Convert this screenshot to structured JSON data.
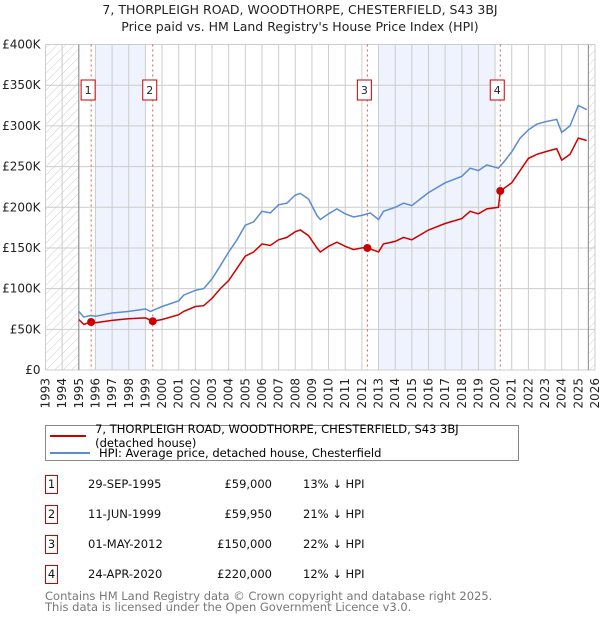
{
  "title": "7, THORPLEIGH ROAD, WOODTHORPE, CHESTERFIELD, S43 3BJ",
  "subtitle": "Price paid vs. HM Land Registry's House Price Index (HPI)",
  "colors": {
    "property": "#cc0000",
    "hpi": "#5b8bd0",
    "shade": "#eef3fd",
    "grid": "#cccccc"
  },
  "chart_data": {
    "type": "line",
    "xlim": [
      1993,
      2026
    ],
    "ylim": [
      0,
      400000
    ],
    "x_ticks": [
      "1993",
      "1994",
      "1995",
      "1996",
      "1997",
      "1998",
      "1999",
      "2000",
      "2001",
      "2002",
      "2003",
      "2004",
      "2005",
      "2006",
      "2007",
      "2008",
      "2009",
      "2010",
      "2011",
      "2012",
      "2013",
      "2014",
      "2015",
      "2016",
      "2017",
      "2018",
      "2019",
      "2020",
      "2021",
      "2022",
      "2023",
      "2024",
      "2025",
      "2026"
    ],
    "y_ticks": [
      {
        "v": 0,
        "label": "£0"
      },
      {
        "v": 50000,
        "label": "£50K"
      },
      {
        "v": 100000,
        "label": "£100K"
      },
      {
        "v": 150000,
        "label": "£150K"
      },
      {
        "v": 200000,
        "label": "£200K"
      },
      {
        "v": 250000,
        "label": "£250K"
      },
      {
        "v": 300000,
        "label": "£300K"
      },
      {
        "v": 350000,
        "label": "£350K"
      },
      {
        "v": 400000,
        "label": "£400K"
      }
    ],
    "grid": true,
    "hatched_ranges": [
      [
        1993,
        1995
      ],
      [
        2025.6,
        2026
      ]
    ],
    "shaded_ranges": [
      [
        1996,
        1999
      ],
      [
        2013,
        2020
      ]
    ],
    "series": [
      {
        "name": "7, THORPLEIGH ROAD, WOODTHORPE, CHESTERFIELD, S43 3BJ (detached house)",
        "x": [
          1995,
          1995.3,
          1995.75,
          1996,
          1997,
          1998,
          1999,
          1999.45,
          2000,
          2001,
          2001.3,
          2002,
          2002.5,
          2003,
          2003.5,
          2004,
          2004.5,
          2005,
          2005.5,
          2006,
          2006.5,
          2007,
          2007.5,
          2008,
          2008.3,
          2008.8,
          2009.3,
          2009.5,
          2010,
          2010.5,
          2011,
          2011.5,
          2012,
          2012.33,
          2013,
          2013.3,
          2014,
          2014.5,
          2015,
          2016,
          2017,
          2018,
          2018.5,
          2019,
          2019.5,
          2020.2,
          2020.31,
          2021,
          2021.5,
          2022,
          2022.5,
          2023,
          2023.7,
          2024,
          2024.5,
          2025,
          2025.5
        ],
        "values": [
          62000,
          56000,
          59000,
          58000,
          61000,
          63000,
          64000,
          59950,
          62000,
          68000,
          72000,
          78000,
          79000,
          88000,
          100000,
          110000,
          125000,
          140000,
          145000,
          155000,
          153000,
          160000,
          163000,
          170000,
          172000,
          165000,
          150000,
          145000,
          152000,
          157000,
          152000,
          148000,
          150000,
          150000,
          145000,
          155000,
          158000,
          163000,
          160000,
          172000,
          180000,
          186000,
          195000,
          192000,
          198000,
          200000,
          220000,
          230000,
          245000,
          260000,
          265000,
          268000,
          272000,
          258000,
          265000,
          285000,
          282000
        ]
      },
      {
        "name": "HPI: Average price, detached house, Chesterfield",
        "x": [
          1995,
          1995.3,
          1995.7,
          1996,
          1997,
          1998,
          1999,
          1999.3,
          2000,
          2001,
          2001.3,
          2002,
          2002.5,
          2003,
          2003.5,
          2004,
          2004.5,
          2005,
          2005.5,
          2006,
          2006.5,
          2007,
          2007.5,
          2008,
          2008.3,
          2008.8,
          2009.3,
          2009.5,
          2010,
          2010.5,
          2011,
          2011.5,
          2012,
          2012.5,
          2013,
          2013.3,
          2014,
          2014.5,
          2015,
          2016,
          2017,
          2018,
          2018.5,
          2019,
          2019.5,
          2020.2,
          2020.5,
          2021,
          2021.5,
          2022,
          2022.5,
          2023,
          2023.7,
          2024,
          2024.5,
          2025,
          2025.5
        ],
        "values": [
          72000,
          65000,
          67000,
          66000,
          70000,
          72000,
          75000,
          72000,
          78000,
          85000,
          92000,
          98000,
          100000,
          112000,
          128000,
          145000,
          160000,
          178000,
          182000,
          195000,
          193000,
          203000,
          205000,
          215000,
          217000,
          210000,
          190000,
          185000,
          192000,
          198000,
          192000,
          188000,
          190000,
          193000,
          185000,
          195000,
          200000,
          205000,
          202000,
          218000,
          230000,
          238000,
          248000,
          245000,
          252000,
          248000,
          255000,
          268000,
          285000,
          295000,
          302000,
          305000,
          308000,
          292000,
          300000,
          325000,
          320000
        ]
      }
    ],
    "sales": [
      {
        "n": "1",
        "x": 1995.74,
        "value": 59000,
        "date": "29-SEP-1995",
        "price": "£59,000",
        "pct": "13% ↓ HPI"
      },
      {
        "n": "2",
        "x": 1999.44,
        "value": 59950,
        "date": "11-JUN-1999",
        "price": "£59,950",
        "pct": "21% ↓ HPI"
      },
      {
        "n": "3",
        "x": 2012.33,
        "value": 150000,
        "date": "01-MAY-2012",
        "price": "£150,000",
        "pct": "22% ↓ HPI"
      },
      {
        "n": "4",
        "x": 2020.31,
        "value": 220000,
        "date": "24-APR-2020",
        "price": "£220,000",
        "pct": "12% ↓ HPI"
      }
    ]
  },
  "legend": {
    "property": "7, THORPLEIGH ROAD, WOODTHORPE, CHESTERFIELD, S43 3BJ (detached house)",
    "hpi": "HPI: Average price, detached house, Chesterfield"
  },
  "footer": {
    "line1": "Contains HM Land Registry data © Crown copyright and database right 2025.",
    "line2": "This data is licensed under the Open Government Licence v3.0."
  }
}
